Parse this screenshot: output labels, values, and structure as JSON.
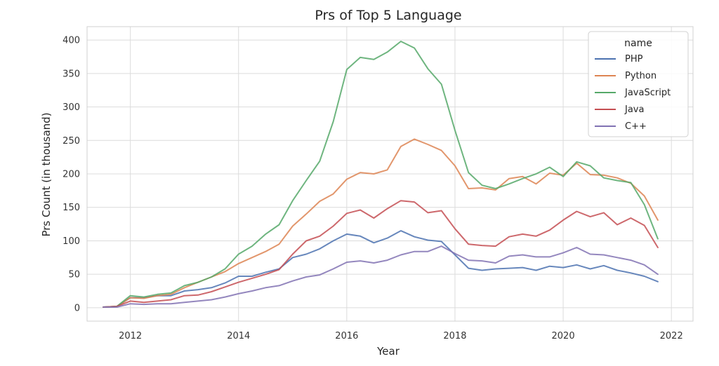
{
  "chart_data": {
    "type": "line",
    "title": "Prs of Top 5 Language",
    "xlabel": "Year",
    "ylabel": "Prs Count (in thousand)",
    "xlim": [
      2011.2,
      2022.4
    ],
    "ylim": [
      -20,
      420
    ],
    "xticks": [
      2012,
      2014,
      2016,
      2018,
      2020,
      2022
    ],
    "yticks": [
      0,
      50,
      100,
      150,
      200,
      250,
      300,
      350,
      400
    ],
    "grid": true,
    "legend": {
      "title": "name",
      "placement": "top-right"
    },
    "x": [
      2011.5,
      2011.75,
      2012.0,
      2012.25,
      2012.5,
      2012.75,
      2013.0,
      2013.25,
      2013.5,
      2013.75,
      2014.0,
      2014.25,
      2014.5,
      2014.75,
      2015.0,
      2015.25,
      2015.5,
      2015.75,
      2016.0,
      2016.25,
      2016.5,
      2016.75,
      2017.0,
      2017.25,
      2017.5,
      2017.75,
      2018.0,
      2018.25,
      2018.5,
      2018.75,
      2019.0,
      2019.25,
      2019.5,
      2019.75,
      2020.0,
      2020.25,
      2020.5,
      2020.75,
      2021.0,
      2021.25,
      2021.5,
      2021.75
    ],
    "series": [
      {
        "name": "PHP",
        "color": "#4c72b0",
        "values": [
          1,
          2,
          15,
          15,
          18,
          18,
          25,
          27,
          30,
          37,
          47,
          47,
          53,
          58,
          75,
          80,
          88,
          100,
          110,
          107,
          97,
          104,
          115,
          106,
          101,
          99,
          79,
          59,
          56,
          58,
          59,
          60,
          56,
          62,
          60,
          64,
          58,
          63,
          56,
          52,
          47,
          39
        ]
      },
      {
        "name": "Python",
        "color": "#dd8452",
        "values": [
          1,
          2,
          15,
          14,
          18,
          20,
          30,
          38,
          46,
          54,
          66,
          75,
          84,
          95,
          122,
          140,
          159,
          170,
          192,
          202,
          200,
          206,
          241,
          252,
          244,
          235,
          212,
          178,
          179,
          176,
          193,
          196,
          185,
          201,
          198,
          216,
          199,
          198,
          194,
          186,
          167,
          131
        ]
      },
      {
        "name": "JavaScript",
        "color": "#55a868",
        "values": [
          1,
          2,
          18,
          16,
          20,
          22,
          33,
          38,
          46,
          58,
          80,
          92,
          110,
          124,
          160,
          190,
          219,
          278,
          356,
          374,
          371,
          382,
          398,
          388,
          357,
          334,
          265,
          202,
          183,
          178,
          185,
          193,
          200,
          210,
          196,
          218,
          212,
          194,
          190,
          187,
          154,
          103
        ]
      },
      {
        "name": "Java",
        "color": "#c44e52",
        "values": [
          1,
          2,
          10,
          8,
          10,
          12,
          18,
          19,
          24,
          31,
          38,
          44,
          50,
          57,
          80,
          100,
          107,
          122,
          141,
          146,
          134,
          148,
          160,
          158,
          142,
          145,
          118,
          95,
          93,
          92,
          106,
          110,
          107,
          116,
          131,
          144,
          136,
          142,
          124,
          134,
          123,
          90
        ]
      },
      {
        "name": "C++",
        "color": "#8172b3",
        "values": [
          1,
          1,
          6,
          5,
          6,
          6,
          8,
          10,
          12,
          16,
          21,
          25,
          30,
          33,
          40,
          46,
          49,
          58,
          68,
          70,
          67,
          71,
          79,
          84,
          84,
          92,
          81,
          71,
          70,
          67,
          77,
          79,
          76,
          76,
          82,
          90,
          80,
          79,
          75,
          71,
          64,
          50
        ]
      }
    ]
  }
}
